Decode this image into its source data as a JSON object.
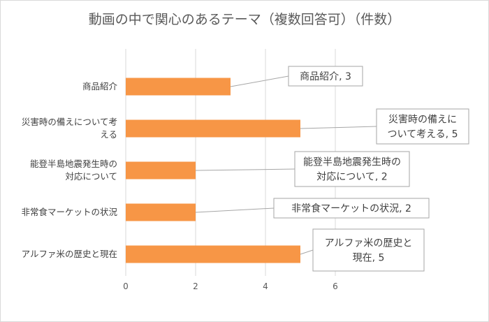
{
  "chart_data": {
    "type": "bar",
    "orientation": "horizontal",
    "title": "動画の中で関心のあるテーマ（複数回答可）（件数）",
    "categories": [
      "商品紹介",
      "災害時の備えについて考える",
      "能登半島地震発生時の対応について",
      "非常食マーケットの状況",
      "アルファ米の歴史と現在"
    ],
    "category_lines": [
      [
        "商品紹介"
      ],
      [
        "災害時の備えについて考",
        "える"
      ],
      [
        "能登半島地震発生時の",
        "対応について"
      ],
      [
        "非常食マーケットの状況"
      ],
      [
        "アルファ米の歴史と現在"
      ]
    ],
    "values": [
      3,
      5,
      2,
      2,
      5
    ],
    "data_labels": [
      [
        "商品紹介, 3"
      ],
      [
        "災害時の備えに",
        "ついて考える, 5"
      ],
      [
        "能登半島地震発生時の",
        "対応について, 2"
      ],
      [
        "非常食マーケットの状況, 2"
      ],
      [
        "アルファ米の歴史と",
        "現在, 5"
      ]
    ],
    "x_ticks": [
      "0",
      "2",
      "4",
      "6"
    ],
    "xlim": [
      0,
      6
    ],
    "grid": true,
    "legend": "none",
    "bar_color": "#f79646",
    "colors": {
      "gridline": "#d9d9d9",
      "callout_border": "#a6a6a6",
      "frame": "#d9d9d9"
    }
  }
}
